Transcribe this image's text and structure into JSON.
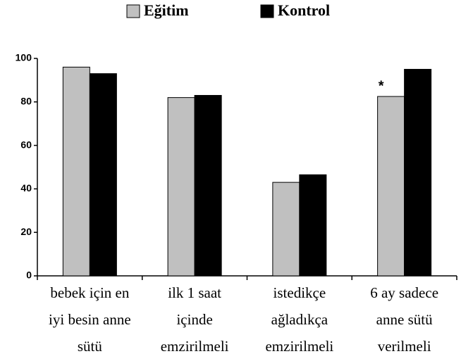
{
  "chart_data": {
    "type": "bar",
    "categories": [
      "bebek için en\niyi besin anne\nsütü",
      "ilk 1 saat\niçinde\nemzirilmeli",
      "istedikçe\nağladıkça\nemzirilmeli",
      "6 ay sadece\nanne sütü\nverilmeli"
    ],
    "series": [
      {
        "name": "Eğitim",
        "color": "#c0c0c0",
        "values": [
          96,
          82,
          43,
          82.5
        ]
      },
      {
        "name": "Kontrol",
        "color": "#000000",
        "values": [
          93,
          83,
          46.5,
          95
        ]
      }
    ],
    "annotations": [
      {
        "text": "*",
        "category": 3,
        "series": 0
      }
    ],
    "ylim": [
      0,
      100
    ],
    "yticks": [
      0,
      20,
      40,
      60,
      80,
      100
    ],
    "grid": false,
    "legend": "top"
  }
}
